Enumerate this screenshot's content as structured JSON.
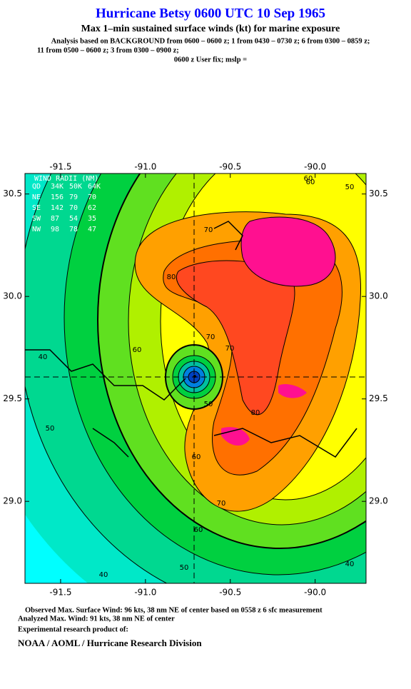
{
  "chart_data": {
    "type": "contour-map",
    "title": "Hurricane Betsy 0600 UTC 10 Sep 1965",
    "subtitle": "Max 1–min sustained surface winds (kt) for marine exposure",
    "analysis_lines": [
      "Analysis based on  BACKGROUND from 0600 – 0600 z;  1 from 0430 – 0730 z;  6 from 0300 – 0859 z;",
      "11 from 0500 – 0600 z;  3 from 0300 – 0900 z;",
      "0600 z User fix; mslp ="
    ],
    "xlim": [
      -91.71,
      -89.7
    ],
    "ylim": [
      28.6,
      30.6
    ],
    "xticks": [
      -91.5,
      {
        "value": -91,
        "label": "-91.0"
      },
      -90.5,
      {
        "value": -90,
        "label": "-90.0"
      }
    ],
    "yticks": [
      {
        "value": 29,
        "label": "29.0"
      },
      29.5,
      {
        "value": 30,
        "label": "30.0"
      },
      30.5
    ],
    "center": [
      -90.71,
      29.61
    ],
    "contour_labels": [
      60,
      50,
      70,
      80,
      60,
      70,
      60,
      40,
      50,
      70,
      80,
      60,
      50,
      40,
      60,
      40,
      50,
      70
    ],
    "wind_radii": {
      "title": "WIND RADII (NM)",
      "header": [
        "QD",
        "34K",
        "50K",
        "64K"
      ],
      "rows": [
        [
          "NE",
          156,
          79,
          70
        ],
        [
          "SE",
          142,
          70,
          62
        ],
        [
          "SW",
          87,
          54,
          35
        ],
        [
          "NW",
          98,
          78,
          47
        ]
      ]
    },
    "footer": [
      "Observed Max. Surface Wind: 96 kts, 38 nm NE of center based on 0558 z 6 sfc measurement",
      "Analyzed Max. Wind: 91 kts, 38 nm NE of center",
      "Experimental research product of:",
      "NOAA / AOML / Hurricane Research Division"
    ]
  }
}
